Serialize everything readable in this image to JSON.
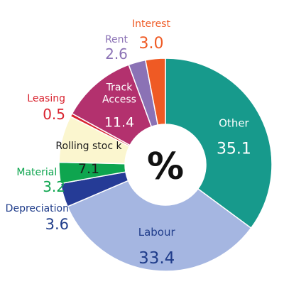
{
  "chart_data": {
    "type": "pie",
    "style": "donut",
    "title": "",
    "center_label": "%",
    "slices": [
      {
        "name": "Other",
        "name_lines": [
          "Other"
        ],
        "value": 35.1,
        "display_value": "35.1",
        "color": "#179a8c",
        "label_color": "#ffffff",
        "label_position": "inside"
      },
      {
        "name": "Labour",
        "name_lines": [
          "Labour"
        ],
        "value": 33.4,
        "display_value": "33.4",
        "color": "#a5b6e1",
        "label_color": "#1f3c8a",
        "label_position": "inside"
      },
      {
        "name": "Depreciation",
        "name_lines": [
          "Depreciation"
        ],
        "value": 3.6,
        "display_value": "3.6",
        "color": "#253b96",
        "label_color": "#1f3c8a",
        "label_position": "outside-left"
      },
      {
        "name": "Materials",
        "name_lines": [
          "Material s"
        ],
        "value": 3.2,
        "display_value": "3.2",
        "color": "#0ea54f",
        "label_color": "#0ea54f",
        "label_position": "outside-left"
      },
      {
        "name": "Rolling stock",
        "name_lines": [
          "Rolling stoc k"
        ],
        "value": 7.1,
        "display_value": "7.1",
        "color": "#fbf6cf",
        "label_color": "#1a1a1a",
        "label_position": "inside"
      },
      {
        "name": "Leasing",
        "name_lines": [
          "Leasing"
        ],
        "value": 0.5,
        "display_value": "0.5",
        "color": "#d9232f",
        "label_color": "#d9232f",
        "label_position": "outside-left"
      },
      {
        "name": "Track Access",
        "name_lines": [
          "Track",
          "Access"
        ],
        "value": 11.4,
        "display_value": "11.4",
        "color": "#b3316e",
        "label_color": "#ffffff",
        "label_position": "inside"
      },
      {
        "name": "Rent",
        "name_lines": [
          "Rent"
        ],
        "value": 2.6,
        "display_value": "2.6",
        "color": "#8b72b5",
        "label_color": "#8b72b5",
        "label_position": "outside-top"
      },
      {
        "name": "Interest",
        "name_lines": [
          "Interest"
        ],
        "value": 3.0,
        "display_value": "3.0",
        "color": "#ef5a24",
        "label_color": "#ef5a24",
        "label_position": "outside-top"
      }
    ]
  }
}
